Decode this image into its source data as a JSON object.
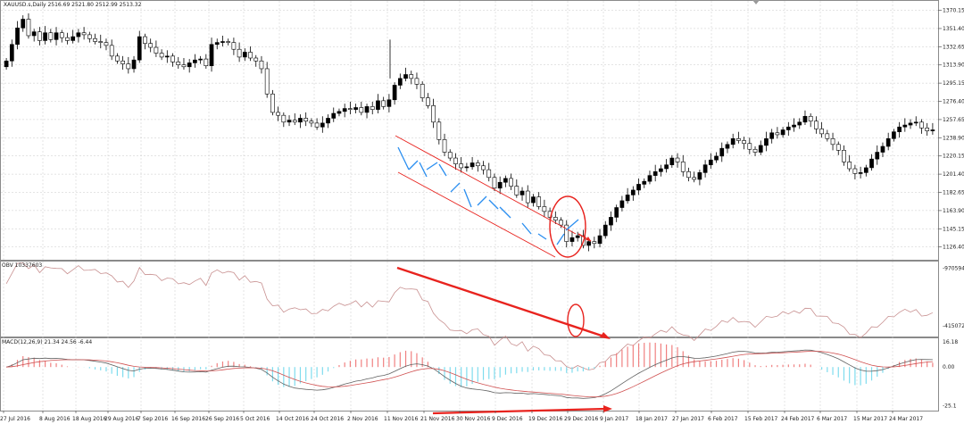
{
  "chart_data": [
    {
      "type": "candlestick",
      "panel": "price",
      "header": "XAUUSD.s,Daily  2516.69 2521.80 2512.99 2513.32",
      "y_ticks": [
        "1370.15",
        "1351.40",
        "1332.65",
        "1313.90",
        "1295.15",
        "1276.40",
        "1257.65",
        "1238.90",
        "1220.15",
        "1201.40",
        "1182.65",
        "1163.90",
        "1145.15",
        "1126.40"
      ],
      "ylim": [
        1116,
        1378
      ],
      "x_ticks": [
        "27 Jul 2016",
        "8 Aug 2016",
        "18 Aug 2016",
        "29 Aug 2016",
        "7 Sep 2016",
        "16 Sep 2016",
        "26 Sep 2016",
        "5 Oct 2016",
        "14 Oct 2016",
        "24 Oct 2016",
        "2 Nov 2016",
        "11 Nov 2016",
        "21 Nov 2016",
        "30 Nov 2016",
        "9 Dec 2016",
        "19 Dec 2016",
        "29 Dec 2016",
        "9 Jan 2017",
        "18 Jan 2017",
        "27 Jan 2017",
        "6 Feb 2017",
        "15 Feb 2017",
        "24 Feb 2017",
        "6 Mar 2017",
        "15 Mar 2017",
        "24 Mar 2017"
      ],
      "closes": [
        1318,
        1335,
        1352,
        1361,
        1344,
        1348,
        1339,
        1347,
        1340,
        1347,
        1342,
        1339,
        1343,
        1347,
        1345,
        1341,
        1338,
        1337,
        1334,
        1323,
        1318,
        1315,
        1310,
        1319,
        1343,
        1336,
        1332,
        1326,
        1322,
        1323,
        1317,
        1314,
        1312,
        1316,
        1319,
        1320,
        1313,
        1335,
        1337,
        1338,
        1337,
        1330,
        1322,
        1327,
        1321,
        1318,
        1310,
        1284,
        1265,
        1262,
        1255,
        1257,
        1255,
        1259,
        1256,
        1254,
        1250,
        1254,
        1259,
        1264,
        1266,
        1269,
        1268,
        1270,
        1265,
        1271,
        1268,
        1277,
        1271,
        1278,
        1293,
        1300,
        1304,
        1300,
        1294,
        1280,
        1272,
        1255,
        1237,
        1224,
        1218,
        1212,
        1208,
        1209,
        1213,
        1210,
        1206,
        1198,
        1187,
        1193,
        1197,
        1189,
        1180,
        1184,
        1172,
        1178,
        1168,
        1163,
        1157,
        1154,
        1149,
        1132,
        1136,
        1138,
        1128,
        1132,
        1130,
        1138,
        1149,
        1157,
        1167,
        1174,
        1180,
        1185,
        1191,
        1194,
        1200,
        1204,
        1207,
        1211,
        1218,
        1214,
        1204,
        1198,
        1196,
        1203,
        1211,
        1216,
        1220,
        1228,
        1232,
        1238,
        1236,
        1233,
        1227,
        1224,
        1231,
        1238,
        1244,
        1242,
        1247,
        1250,
        1252,
        1255,
        1261,
        1256,
        1248,
        1243,
        1238,
        1232,
        1226,
        1214,
        1207,
        1202,
        1203,
        1208,
        1217,
        1224,
        1230,
        1238,
        1245,
        1250,
        1252,
        1254,
        1255,
        1249,
        1246,
        1247
      ]
    },
    {
      "type": "line",
      "panel": "obv",
      "header": "OBV 10337603",
      "y_ticks": [
        "-970594",
        "-4150728"
      ],
      "ylim": [
        -4650000,
        -600000
      ]
    },
    {
      "type": "histogram+line",
      "panel": "macd",
      "header": "MACD(12,26,9) 21.34 24.56 -6.44",
      "y_ticks": [
        "16.18",
        "0.00",
        "-25.1"
      ],
      "ylim": [
        -27,
        18
      ]
    }
  ],
  "colors": {
    "bull": "#000000",
    "bear": "#ffffff",
    "grid": "#c8c8c8",
    "obv_line": "#c89090",
    "macd_hist_pos": "#f08080",
    "macd_hist_neg": "#7fdcee",
    "macd_line": "#606060",
    "signal_line": "#d05050",
    "annotation_red": "#e8231e",
    "annotation_blue": "#2a8ef0"
  }
}
